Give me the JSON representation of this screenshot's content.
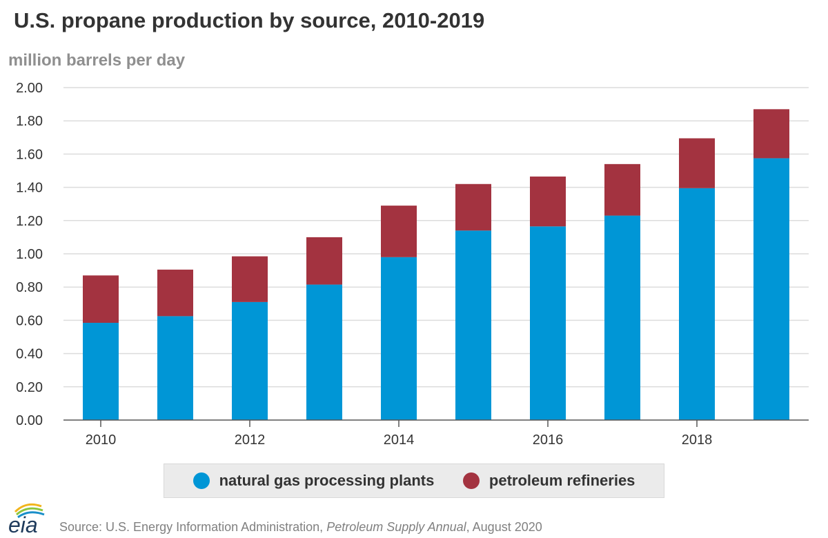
{
  "chart_data": {
    "type": "bar",
    "stacked": true,
    "title": "U.S. propane production by source, 2010-2019",
    "ylabel": "million barrels per day",
    "xlabel": "",
    "ylim": [
      0,
      2
    ],
    "yticks": [
      "0.00",
      "0.20",
      "0.40",
      "0.60",
      "0.80",
      "1.00",
      "1.20",
      "1.40",
      "1.60",
      "1.80",
      "2.00"
    ],
    "categories": [
      "2010",
      "2011",
      "2012",
      "2013",
      "2014",
      "2015",
      "2016",
      "2017",
      "2018",
      "2019"
    ],
    "xtick_labels": [
      "2010",
      "2012",
      "2014",
      "2016",
      "2018"
    ],
    "series": [
      {
        "name": "natural gas processing plants",
        "color": "#0096d6",
        "values": [
          0.585,
          0.625,
          0.71,
          0.815,
          0.98,
          1.14,
          1.165,
          1.23,
          1.395,
          1.575
        ]
      },
      {
        "name": "petroleum refineries",
        "color": "#a33340",
        "values": [
          0.285,
          0.28,
          0.275,
          0.285,
          0.31,
          0.28,
          0.3,
          0.31,
          0.3,
          0.295
        ]
      }
    ],
    "grid": true,
    "legend_position": "bottom"
  },
  "legend": {
    "items": [
      {
        "label": "natural gas processing plants",
        "color": "#0096d6"
      },
      {
        "label": "petroleum refineries",
        "color": "#a33340"
      }
    ]
  },
  "footer": {
    "prefix": "Source: U.S. Energy Information Administration, ",
    "publication": "Petroleum Supply Annual",
    "suffix": ", August 2020"
  },
  "logo": {
    "text": "eia"
  }
}
